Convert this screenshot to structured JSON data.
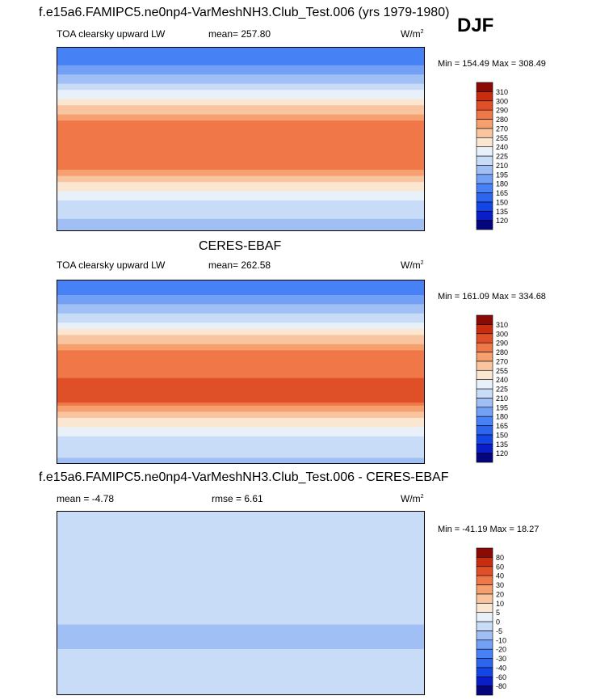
{
  "season": "DJF",
  "panels": [
    {
      "title": "f.e15a6.FAMIPC5.ne0np4-VarMeshNH3.Club_Test.006 (yrs 1979-1980)",
      "left_label": "TOA clearsky upward LW",
      "mean_label": "mean= 257.80",
      "rmse_label": "",
      "units": "W/m",
      "units_exp": "2",
      "minmax": "Min = 154.49 Max = 308.49"
    },
    {
      "title": "CERES-EBAF",
      "left_label": "TOA clearsky upward LW",
      "mean_label": "mean= 262.58",
      "rmse_label": "",
      "units": "W/m",
      "units_exp": "2",
      "minmax": "Min = 161.09 Max = 334.68"
    },
    {
      "title": "f.e15a6.FAMIPC5.ne0np4-VarMeshNH3.Club_Test.006 - CERES-EBAF",
      "left_label": "mean =  -4.78",
      "mean_label": "",
      "rmse_label": "rmse =   6.61",
      "units": "W/m",
      "units_exp": "2",
      "minmax": "Min = -41.19 Max =  18.27"
    }
  ],
  "chart_data": [
    {
      "type": "heatmap",
      "title": "f.e15a6.FAMIPC5.ne0np4-VarMeshNH3.Club_Test.006 (yrs 1979-1980)",
      "variable": "TOA clearsky upward LW",
      "units": "W/m2",
      "mean": 257.8,
      "min": 154.49,
      "max": 308.49,
      "colorbar_levels": [
        120,
        135,
        150,
        165,
        180,
        195,
        210,
        225,
        240,
        255,
        270,
        280,
        290,
        300,
        310
      ],
      "colorbar_colors": [
        "#05057d",
        "#0a1ec8",
        "#1446e6",
        "#2d64f0",
        "#4682f5",
        "#73a0f5",
        "#a0c0f5",
        "#c8dcf8",
        "#e8f0fa",
        "#fbe6d2",
        "#f9c5a0",
        "#f6a070",
        "#f07848",
        "#e05028",
        "#c82d10",
        "#8c0a05"
      ],
      "zonal_profile": [
        {
          "lat": 90,
          "value": 165
        },
        {
          "lat": 75,
          "value": 175
        },
        {
          "lat": 60,
          "value": 200
        },
        {
          "lat": 45,
          "value": 228
        },
        {
          "lat": 30,
          "value": 262
        },
        {
          "lat": 15,
          "value": 285
        },
        {
          "lat": 0,
          "value": 285
        },
        {
          "lat": -15,
          "value": 290
        },
        {
          "lat": -30,
          "value": 282
        },
        {
          "lat": -45,
          "value": 250
        },
        {
          "lat": -60,
          "value": 225
        },
        {
          "lat": -75,
          "value": 212
        },
        {
          "lat": -90,
          "value": 205
        }
      ]
    },
    {
      "type": "heatmap",
      "title": "CERES-EBAF",
      "variable": "TOA clearsky upward LW",
      "units": "W/m2",
      "mean": 262.58,
      "min": 161.09,
      "max": 334.68,
      "colorbar_levels": [
        120,
        135,
        150,
        165,
        180,
        195,
        210,
        225,
        240,
        255,
        270,
        280,
        290,
        300,
        310
      ],
      "colorbar_colors": [
        "#05057d",
        "#0a1ec8",
        "#1446e6",
        "#2d64f0",
        "#4682f5",
        "#73a0f5",
        "#a0c0f5",
        "#c8dcf8",
        "#e8f0fa",
        "#fbe6d2",
        "#f9c5a0",
        "#f6a070",
        "#f07848",
        "#e05028",
        "#c82d10",
        "#8c0a05"
      ],
      "zonal_profile": [
        {
          "lat": 90,
          "value": 168
        },
        {
          "lat": 75,
          "value": 178
        },
        {
          "lat": 60,
          "value": 205
        },
        {
          "lat": 45,
          "value": 232
        },
        {
          "lat": 30,
          "value": 266
        },
        {
          "lat": 15,
          "value": 290
        },
        {
          "lat": 0,
          "value": 288
        },
        {
          "lat": -15,
          "value": 294
        },
        {
          "lat": -30,
          "value": 290
        },
        {
          "lat": -45,
          "value": 255
        },
        {
          "lat": -60,
          "value": 228
        },
        {
          "lat": -75,
          "value": 214
        },
        {
          "lat": -90,
          "value": 207
        }
      ]
    },
    {
      "type": "heatmap",
      "title": "f.e15a6.FAMIPC5.ne0np4-VarMeshNH3.Club_Test.006 - CERES-EBAF",
      "variable": "TOA clearsky upward LW difference",
      "units": "W/m2",
      "mean": -4.78,
      "rmse": 6.61,
      "min": -41.19,
      "max": 18.27,
      "colorbar_levels": [
        -80,
        -60,
        -40,
        -30,
        -20,
        -10,
        -5,
        0,
        5,
        10,
        20,
        30,
        40,
        60,
        80
      ],
      "colorbar_colors": [
        "#05057d",
        "#0a1ec8",
        "#1446e6",
        "#2d64f0",
        "#4682f5",
        "#73a0f5",
        "#a0c0f5",
        "#c8dcf8",
        "#e8f0fa",
        "#fbe6d2",
        "#f9c5a0",
        "#f6a070",
        "#f07848",
        "#e05028",
        "#c82d10",
        "#8c0a05"
      ],
      "zonal_profile": [
        {
          "lat": 90,
          "value": -3
        },
        {
          "lat": 75,
          "value": -4
        },
        {
          "lat": 60,
          "value": -5
        },
        {
          "lat": 45,
          "value": -4
        },
        {
          "lat": 30,
          "value": -4
        },
        {
          "lat": 15,
          "value": -5
        },
        {
          "lat": 0,
          "value": -3
        },
        {
          "lat": -15,
          "value": -4
        },
        {
          "lat": -30,
          "value": -7
        },
        {
          "lat": -45,
          "value": -5
        },
        {
          "lat": -60,
          "value": -3
        },
        {
          "lat": -75,
          "value": -2
        },
        {
          "lat": -90,
          "value": -2
        }
      ]
    }
  ]
}
